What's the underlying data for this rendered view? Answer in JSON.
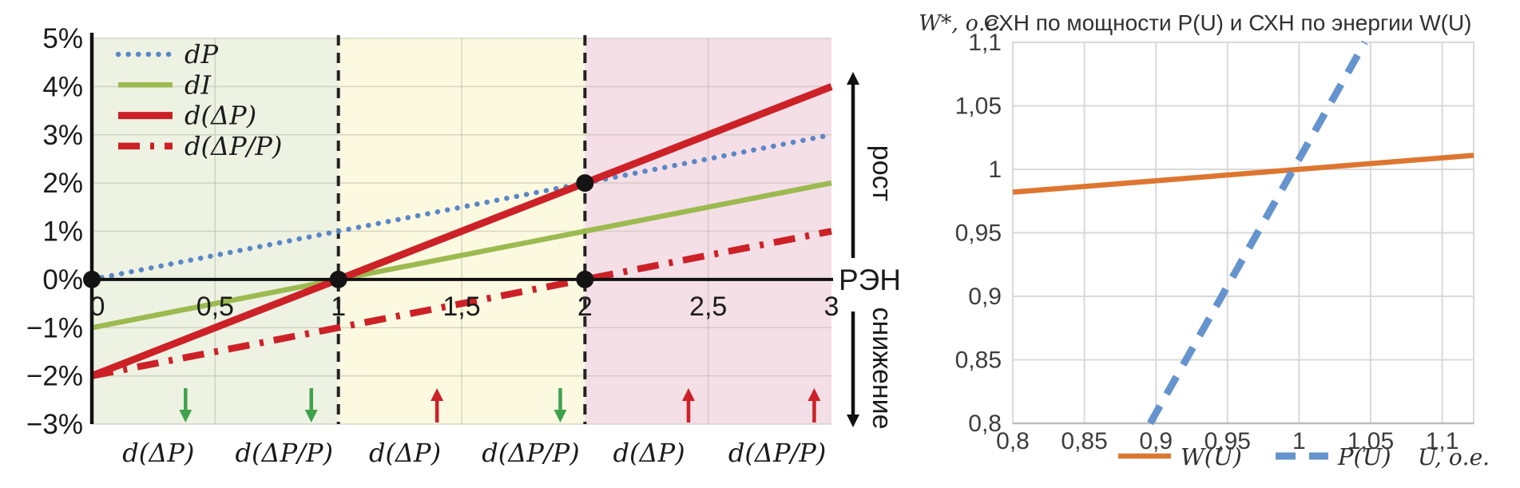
{
  "page": {
    "background": "#ffffff"
  },
  "chart_data": [
    {
      "type": "line",
      "title": "",
      "xlim": [
        0,
        3
      ],
      "ylim": [
        -3,
        5
      ],
      "x_ticks": {
        "labels": [
          "0",
          "0,5",
          "1",
          "1,5",
          "2",
          "2,5",
          "3"
        ],
        "values": [
          0,
          0.5,
          1,
          1.5,
          2,
          2.5,
          3
        ]
      },
      "y_ticks": {
        "labels": [
          "5%",
          "4%",
          "3%",
          "2%",
          "1%",
          "0%",
          "−1%",
          "−2%",
          "−3%"
        ],
        "values": [
          5,
          4,
          3,
          2,
          1,
          0,
          -1,
          -2,
          -3
        ]
      },
      "grid": true,
      "legend_position": "top-left",
      "x_axis_right_label": "РЭН",
      "right_annotations": {
        "up_label": "рост",
        "down_label": "снижение"
      },
      "series": [
        {
          "name": "dP",
          "style": "dotted",
          "color": "#5b87c6",
          "points": [
            [
              0,
              0
            ],
            [
              3,
              3
            ]
          ]
        },
        {
          "name": "dI",
          "style": "solid",
          "color": "#9cba4f",
          "points": [
            [
              0,
              -1
            ],
            [
              3,
              2
            ]
          ]
        },
        {
          "name": "d(ΔP)",
          "style": "thick",
          "color": "#cc2127",
          "points": [
            [
              0,
              -2
            ],
            [
              3,
              4
            ]
          ]
        },
        {
          "name": "d(ΔP/P)",
          "style": "dashdot",
          "color": "#cc2127",
          "points": [
            [
              0,
              -2
            ],
            [
              3,
              1
            ]
          ]
        }
      ],
      "markers": {
        "color": "#141414",
        "points": [
          [
            0,
            0
          ],
          [
            1,
            0
          ],
          [
            2,
            0
          ],
          [
            2,
            2
          ]
        ]
      },
      "regions": [
        {
          "from": 0,
          "to": 1,
          "color": "#eef2e3"
        },
        {
          "from": 1,
          "to": 2,
          "color": "#fcf9e1"
        },
        {
          "from": 2,
          "to": 3,
          "color": "#f5dfe7"
        }
      ],
      "dashed_vlines": {
        "color": "#222222",
        "values": [
          1,
          2
        ]
      },
      "zone_labels": [
        {
          "x": 0.27,
          "text": "d(ΔP)"
        },
        {
          "x": 0.78,
          "text": "d(ΔP/P)"
        },
        {
          "x": 1.27,
          "text": "d(ΔP)"
        },
        {
          "x": 1.78,
          "text": "d(ΔP/P)"
        },
        {
          "x": 2.26,
          "text": "d(ΔP)"
        },
        {
          "x": 2.78,
          "text": "d(ΔP/P)"
        }
      ],
      "zone_arrows": [
        {
          "x": 0.38,
          "dir": "down",
          "color": "#3fa24d"
        },
        {
          "x": 0.89,
          "dir": "down",
          "color": "#3fa24d"
        },
        {
          "x": 1.4,
          "dir": "up",
          "color": "#cc2127"
        },
        {
          "x": 1.9,
          "dir": "down",
          "color": "#3fa24d"
        },
        {
          "x": 2.42,
          "dir": "up",
          "color": "#cc2127"
        },
        {
          "x": 2.93,
          "dir": "up",
          "color": "#cc2127"
        }
      ]
    },
    {
      "type": "line",
      "title": "СХН по мощности P(U) и СХН по энергии W(U)",
      "ylabel": "W*, о.е.",
      "xlabel": "U, о.е.",
      "xlim": [
        0.8,
        1.122
      ],
      "ylim": [
        0.8,
        1.1
      ],
      "x_ticks": {
        "labels": [
          "0,8",
          "0,85",
          "0,9",
          "0,95",
          "1",
          "1,05",
          "1,1"
        ],
        "values": [
          0.8,
          0.85,
          0.9,
          0.95,
          1,
          1.05,
          1.1
        ]
      },
      "y_ticks": {
        "labels": [
          "1,1",
          "1,05",
          "1",
          "0,95",
          "0,9",
          "0,85",
          "0,8"
        ],
        "values": [
          1.1,
          1.05,
          1,
          0.95,
          0.9,
          0.85,
          0.8
        ]
      },
      "grid": true,
      "legend_position": "bottom",
      "series": [
        {
          "name": "W(U)",
          "style": "solid",
          "color": "#dd7630",
          "points": [
            [
              0.8,
              0.982
            ],
            [
              1.0,
              1.0
            ],
            [
              1.122,
              1.011
            ]
          ]
        },
        {
          "name": "P(U)",
          "style": "dashed",
          "color": "#6593ce",
          "points": [
            [
              0.896,
              0.8
            ],
            [
              1.046,
              1.1
            ]
          ]
        }
      ]
    }
  ]
}
